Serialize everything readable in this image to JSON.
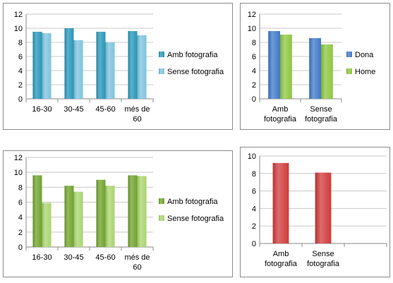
{
  "colors": {
    "teal_dark": "#2596b8",
    "teal_light": "#7cc3dd",
    "blue": "#3f78c8",
    "green_lime": "#8dc63f",
    "green_dark": "#6fa12a",
    "green_light": "#a9d46e",
    "red": "#d03a3a",
    "gridline": "#c8c8c8",
    "axis": "#888888"
  },
  "chart_data": [
    {
      "id": "chart1",
      "type": "bar",
      "categories": [
        [
          "16-30"
        ],
        [
          "30-45"
        ],
        [
          "45-60"
        ],
        [
          "més de",
          "60"
        ]
      ],
      "series": [
        {
          "name": "Amb fotografia",
          "values": [
            9.5,
            10.0,
            9.5,
            9.6
          ],
          "color_key": "teal_dark"
        },
        {
          "name": "Sense fotografia",
          "values": [
            9.3,
            8.3,
            8.0,
            9.0
          ],
          "color_key": "teal_light"
        }
      ],
      "ylim": [
        0,
        12
      ],
      "yticks": [
        0,
        2,
        4,
        6,
        8,
        10,
        12
      ],
      "grid": true,
      "legend": "right"
    },
    {
      "id": "chart2",
      "type": "bar",
      "categories": [
        [
          "Amb",
          "fotografia"
        ],
        [
          "Sense",
          "fotografia"
        ]
      ],
      "series": [
        {
          "name": "Dona",
          "values": [
            9.6,
            8.6
          ],
          "color_key": "blue"
        },
        {
          "name": "Home",
          "values": [
            9.1,
            7.7
          ],
          "color_key": "green_lime"
        }
      ],
      "ylim": [
        0,
        12
      ],
      "yticks": [
        0,
        2,
        4,
        6,
        8,
        10,
        12
      ],
      "grid": true,
      "legend": "right"
    },
    {
      "id": "chart3",
      "type": "bar",
      "categories": [
        [
          "16-30"
        ],
        [
          "30-45"
        ],
        [
          "45-60"
        ],
        [
          "més de",
          "60"
        ]
      ],
      "series": [
        {
          "name": "Amb fotografia",
          "values": [
            9.6,
            8.2,
            9.0,
            9.6
          ],
          "color_key": "green_dark"
        },
        {
          "name": "Sense fotografia",
          "values": [
            5.9,
            7.4,
            8.2,
            9.5
          ],
          "color_key": "green_light"
        }
      ],
      "ylim": [
        0,
        12
      ],
      "yticks": [
        0,
        2,
        4,
        6,
        8,
        10,
        12
      ],
      "grid": true,
      "legend": "right"
    },
    {
      "id": "chart4",
      "type": "bar",
      "categories": [
        [
          "Amb",
          "fotografia"
        ],
        [
          "Sense",
          "fotografia"
        ],
        [
          ""
        ]
      ],
      "series": [
        {
          "values": [
            9.2,
            8.1,
            null
          ],
          "color_key": "red"
        }
      ],
      "ylim": [
        0,
        10
      ],
      "yticks": [
        0,
        2,
        4,
        6,
        8,
        10
      ],
      "grid": true,
      "legend": "none"
    }
  ]
}
